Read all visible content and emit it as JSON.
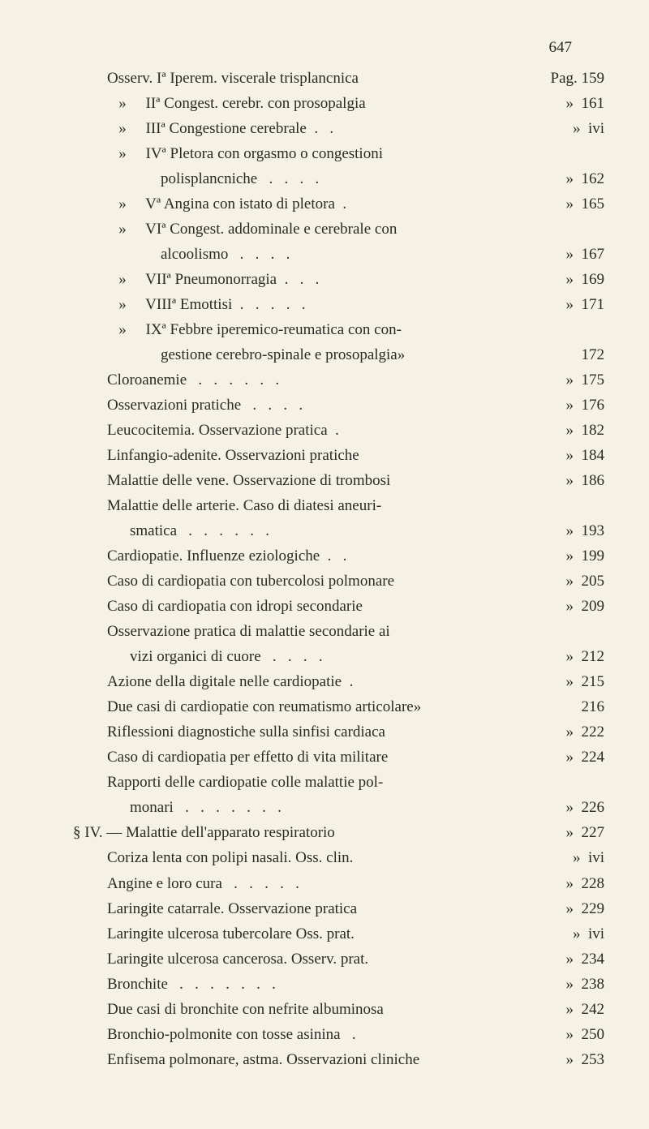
{
  "page_number": "647",
  "text_color": "#2a2a26",
  "background_color": "#f5f1e4",
  "font_size": 19,
  "line_height": 1.58,
  "entries": [
    {
      "indent": "indent-2",
      "text": "Osserv. Iª Iperem. viscerale trisplancnica",
      "page": "Pag. 159"
    },
    {
      "indent": "indent-2",
      "text": "   »     IIª Congest. cerebr. con prosopalgia",
      "page": "»  161"
    },
    {
      "indent": "indent-2",
      "text": "   »     IIIª Congestione cerebrale  .   .",
      "page": "»  ivi"
    },
    {
      "indent": "indent-2",
      "text": "   »     IVª Pletora con orgasmo o congestioni",
      "page": ""
    },
    {
      "indent": "indent-1",
      "text": "        polisplancniche   .   .   .   .",
      "page": "»  162"
    },
    {
      "indent": "indent-2",
      "text": "   »     Vª Angina con istato di pletora  .",
      "page": "»  165"
    },
    {
      "indent": "indent-2",
      "text": "   »     VIª Congest. addominale e cerebrale con",
      "page": ""
    },
    {
      "indent": "indent-1",
      "text": "        alcoolismo   .   .   .   .",
      "page": "»  167"
    },
    {
      "indent": "indent-2",
      "text": "   »     VIIª Pneumonorragia  .   .   .",
      "page": "»  169"
    },
    {
      "indent": "indent-2",
      "text": "   »     VIIIª Emottisi  .   .   .   .   .",
      "page": "»  171"
    },
    {
      "indent": "indent-2",
      "text": "   »     IXª Febbre iperemico-reumatica con con-",
      "page": ""
    },
    {
      "indent": "indent-1",
      "text": "        gestione cerebro-spinale e prosopalgia»",
      "page": "   172"
    },
    {
      "indent": "indent-2",
      "text": "Cloroanemie   .   .   .   .   .   .",
      "page": "»  175"
    },
    {
      "indent": "indent-2",
      "text": "Osservazioni pratiche   .   .   .   .",
      "page": "»  176"
    },
    {
      "indent": "indent-2",
      "text": "Leucocitemia. Osservazione pratica  .",
      "page": "»  182"
    },
    {
      "indent": "indent-2",
      "text": "Linfangio-adenite. Osservazioni pratiche",
      "page": "»  184"
    },
    {
      "indent": "indent-2",
      "text": "Malattie delle vene. Osservazione di trombosi",
      "page": "»  186"
    },
    {
      "indent": "indent-2",
      "text": "Malattie delle arterie. Caso di diatesi aneuri-",
      "page": ""
    },
    {
      "indent": "indent-1",
      "text": "smatica   .   .   .   .   .   .",
      "page": "»  193"
    },
    {
      "indent": "indent-2",
      "text": "Cardiopatie. Influenze eziologiche  .   .",
      "page": "»  199"
    },
    {
      "indent": "indent-2",
      "text": "Caso di cardiopatia con tubercolosi polmonare",
      "page": "»  205"
    },
    {
      "indent": "indent-2",
      "text": "Caso di cardiopatia con idropi secondarie",
      "page": "»  209"
    },
    {
      "indent": "indent-2",
      "text": "Osservazione pratica di malattie secondarie ai",
      "page": ""
    },
    {
      "indent": "indent-1",
      "text": "vizi organici di cuore   .   .   .   .",
      "page": "»  212"
    },
    {
      "indent": "indent-2",
      "text": "Azione della digitale nelle cardiopatie  .",
      "page": "»  215"
    },
    {
      "indent": "indent-2",
      "text": "Due casi di cardiopatie con reumatismo articolare»",
      "page": "   216"
    },
    {
      "indent": "indent-2",
      "text": "Riflessioni diagnostiche sulla sinfisi cardiaca",
      "page": "»  222"
    },
    {
      "indent": "indent-2",
      "text": "Caso di cardiopatia per effetto di vita militare",
      "page": "»  224"
    },
    {
      "indent": "indent-2",
      "text": "Rapporti delle cardiopatie colle malattie pol-",
      "page": ""
    },
    {
      "indent": "indent-1",
      "text": "monari   .   .   .   .   .   .   .",
      "page": "»  226"
    },
    {
      "indent": "section-marker",
      "text": "§ IV. — Malattie dell'apparato respiratorio",
      "page": "»  227"
    },
    {
      "indent": "indent-2",
      "text": "Coriza lenta con polipi nasali. Oss. clin.",
      "page": "»  ivi"
    },
    {
      "indent": "indent-2",
      "text": "Angine e loro cura   .   .   .   .   .",
      "page": "»  228"
    },
    {
      "indent": "indent-2",
      "text": "Laringite catarrale. Osservazione pratica",
      "page": "»  229"
    },
    {
      "indent": "indent-2",
      "text": "Laringite ulcerosa tubercolare Oss. prat.",
      "page": "»  ivi"
    },
    {
      "indent": "indent-2",
      "text": "Laringite ulcerosa cancerosa. Osserv. prat.",
      "page": "»  234"
    },
    {
      "indent": "indent-2",
      "text": "Bronchite   .   .   .   .   .   .   .",
      "page": "»  238"
    },
    {
      "indent": "indent-2",
      "text": "Due casi di bronchite con nefrite albuminosa",
      "page": "»  242"
    },
    {
      "indent": "indent-2",
      "text": "Bronchio-polmonite con tosse asinina   .",
      "page": "»  250"
    },
    {
      "indent": "indent-2",
      "text": "Enfisema polmonare, astma. Osservazioni cliniche",
      "page": "»  253"
    }
  ]
}
